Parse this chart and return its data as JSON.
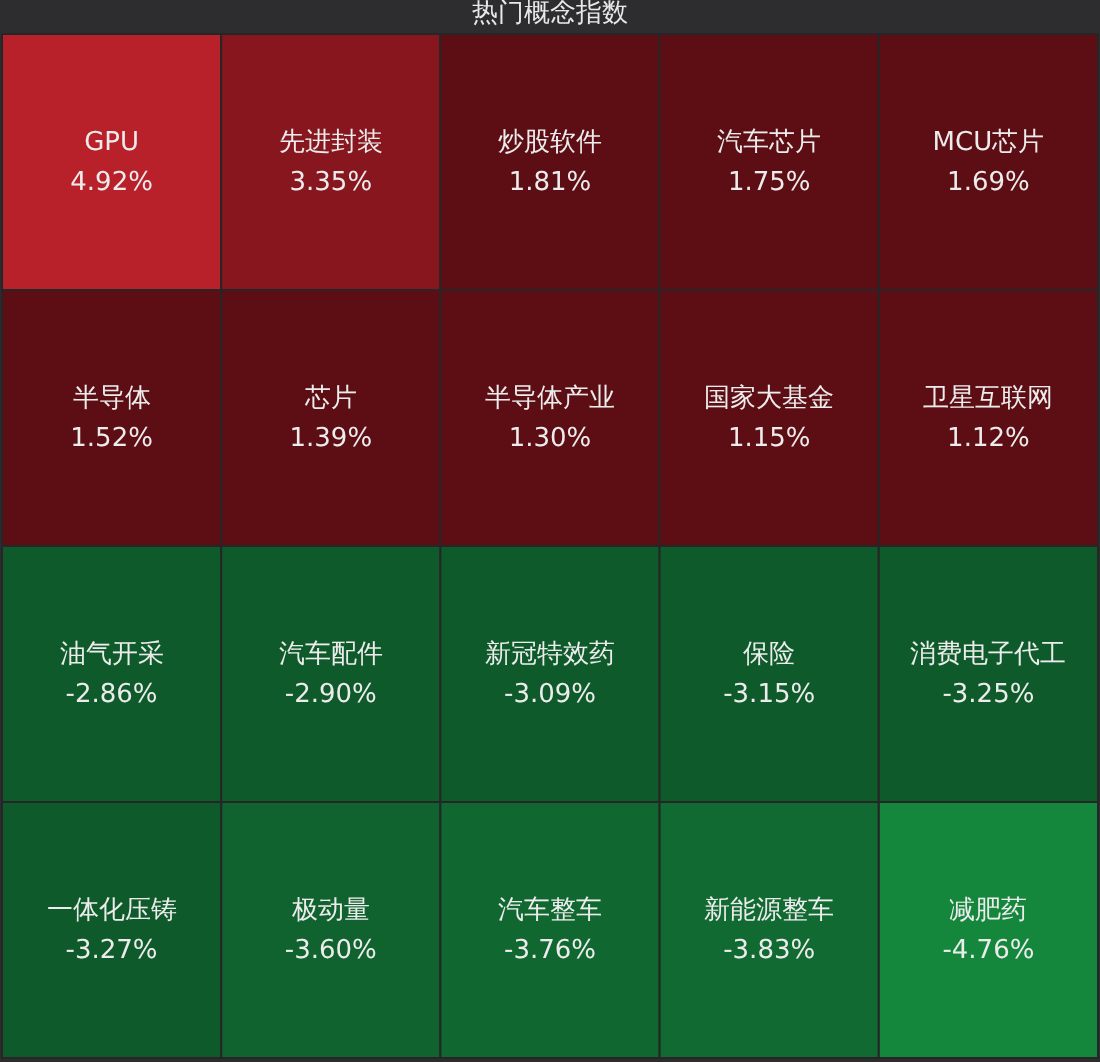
{
  "chart_data": {
    "type": "other",
    "title": "热门概念指数",
    "categories": [
      "GPU",
      "先进封装",
      "炒股软件",
      "汽车芯片",
      "MCU芯片",
      "半导体",
      "芯片",
      "半导体产业",
      "国家大基金",
      "卫星互联网",
      "油气开采",
      "汽车配件",
      "新冠特效药",
      "保险",
      "消费电子代工",
      "一体化压铸",
      "极动量",
      "汽车整车",
      "新能源整车",
      "减肥药"
    ],
    "values": [
      4.92,
      3.35,
      1.81,
      1.75,
      1.69,
      1.52,
      1.39,
      1.3,
      1.15,
      1.12,
      -2.86,
      -2.9,
      -3.09,
      -3.15,
      -3.25,
      -3.27,
      -3.6,
      -3.76,
      -3.83,
      -4.76
    ],
    "value_labels": [
      "4.92%",
      "3.35%",
      "1.81%",
      "1.75%",
      "1.69%",
      "1.52%",
      "1.39%",
      "1.30%",
      "1.15%",
      "1.12%",
      "-2.86%",
      "-2.90%",
      "-3.09%",
      "-3.15%",
      "-3.25%",
      "-3.27%",
      "-3.60%",
      "-3.76%",
      "-3.83%",
      "-4.76%"
    ]
  }
}
